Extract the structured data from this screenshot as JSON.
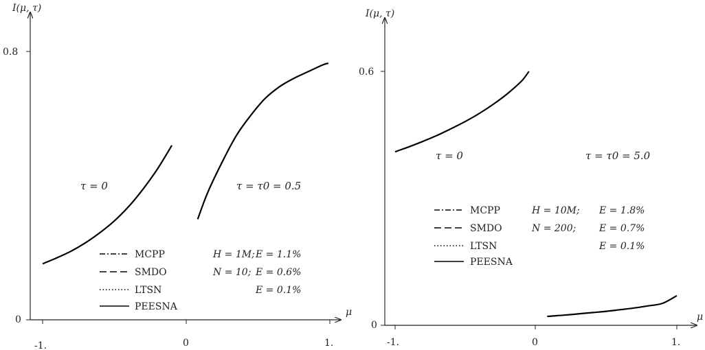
{
  "chart_data": [
    {
      "type": "line",
      "ylabel": "I(μ, τ)",
      "xlabel": "μ",
      "xlim": [
        -1,
        1
      ],
      "ylim": [
        0,
        0.8
      ],
      "xticks": [
        "-1.",
        "0",
        "1."
      ],
      "yticks": [
        "0",
        "0.8"
      ],
      "annotations": [
        "τ = 0",
        "τ = τ0 = 0.5"
      ],
      "legend": {
        "placement": "bottom-center",
        "entries": [
          {
            "label": "MCPP",
            "style": "dash-dot",
            "note": "H = 1M;",
            "error": "E = 1.1%"
          },
          {
            "label": "SMDO",
            "style": "dashed",
            "note": "N =  10;",
            "error": "E = 0.6%"
          },
          {
            "label": "LTSN",
            "style": "dotted",
            "note": "",
            "error": "E = 0.1%"
          },
          {
            "label": "PEESNA",
            "style": "solid",
            "note": "",
            "error": ""
          }
        ]
      },
      "series": [
        {
          "name": "PEESNA",
          "segments": [
            {
              "x": [
                -1.0,
                -0.9,
                -0.8,
                -0.7,
                -0.6,
                -0.5,
                -0.4,
                -0.3,
                -0.2,
                -0.1
              ],
              "y": [
                0.167,
                0.185,
                0.205,
                0.23,
                0.26,
                0.295,
                0.338,
                0.39,
                0.45,
                0.52
              ]
            },
            {
              "x": [
                0.08,
                0.15,
                0.25,
                0.35,
                0.45,
                0.55,
                0.65,
                0.75,
                0.85,
                0.95,
                0.99
              ],
              "y": [
                0.3,
                0.38,
                0.47,
                0.55,
                0.61,
                0.66,
                0.695,
                0.72,
                0.74,
                0.76,
                0.765
              ]
            }
          ]
        }
      ]
    },
    {
      "type": "line",
      "ylabel": "I(μ, τ)",
      "xlabel": "μ",
      "xlim": [
        -1,
        1
      ],
      "ylim": [
        0,
        0.6
      ],
      "xticks": [
        "-1.",
        "0",
        "1."
      ],
      "yticks": [
        "0",
        "0.6"
      ],
      "annotations": [
        "τ = 0",
        "τ = τ0 = 5.0"
      ],
      "legend": {
        "placement": "center",
        "entries": [
          {
            "label": "MCPP",
            "style": "dash-dot",
            "note": "H = 10M;",
            "error": "E = 1.8%"
          },
          {
            "label": "SMDO",
            "style": "dashed",
            "note": "N =  200;",
            "error": "E = 0.7%"
          },
          {
            "label": "LTSN",
            "style": "dotted",
            "note": "",
            "error": "E = 0.1%"
          },
          {
            "label": "PEESNA",
            "style": "solid",
            "note": "",
            "error": ""
          }
        ]
      },
      "series": [
        {
          "name": "PEESNA",
          "segments": [
            {
              "x": [
                -1.0,
                -0.9,
                -0.8,
                -0.7,
                -0.6,
                -0.5,
                -0.4,
                -0.3,
                -0.2,
                -0.1,
                -0.05
              ],
              "y": [
                0.41,
                0.422,
                0.435,
                0.449,
                0.465,
                0.482,
                0.501,
                0.523,
                0.548,
                0.578,
                0.6
              ]
            },
            {
              "x": [
                0.08,
                0.2,
                0.3,
                0.4,
                0.5,
                0.6,
                0.7,
                0.8,
                0.9,
                1.0
              ],
              "y": [
                0.021,
                0.024,
                0.027,
                0.03,
                0.033,
                0.037,
                0.041,
                0.046,
                0.052,
                0.07
              ]
            }
          ]
        }
      ]
    }
  ]
}
